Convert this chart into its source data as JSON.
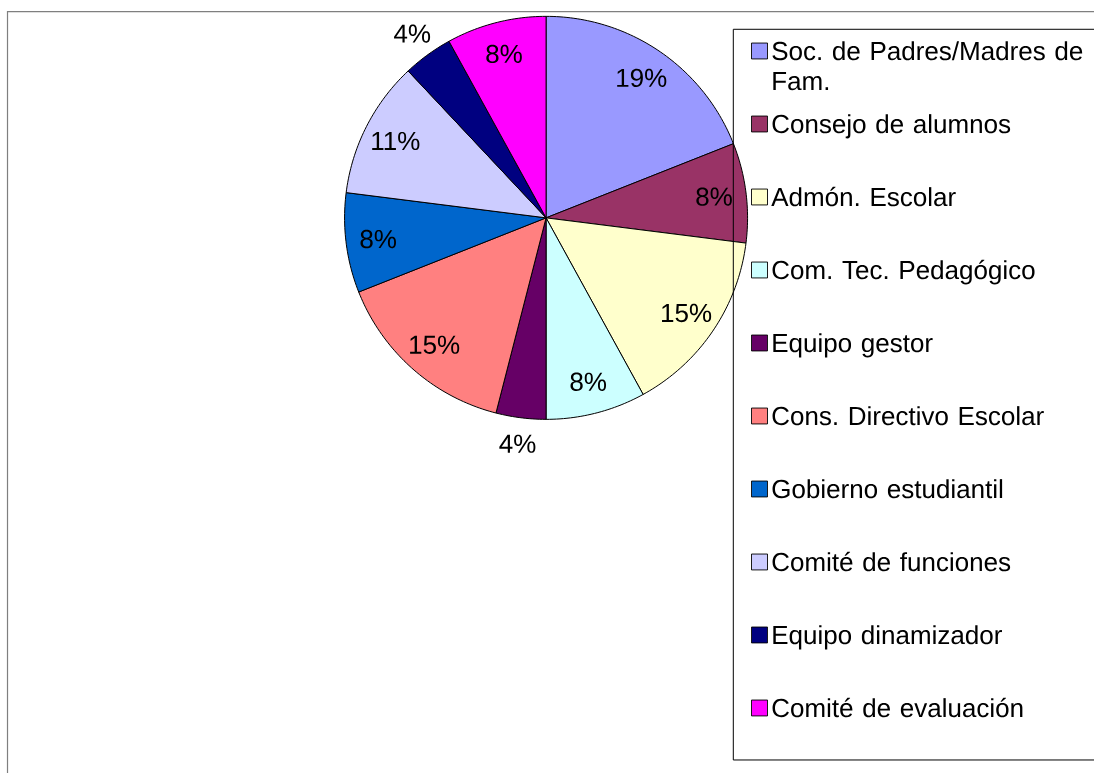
{
  "chart_data": {
    "type": "pie",
    "categories": [
      "Soc. de Padres/Madres de Fam.",
      "Consejo de alumnos",
      "Admón. Escolar",
      "Com. Tec. Pedagógico",
      "Equipo gestor",
      "Cons. Directivo Escolar",
      "Gobierno estudiantil",
      "Comité de funciones",
      "Equipo dinamizador",
      "Comité de evaluación"
    ],
    "values": [
      19,
      8,
      15,
      8,
      4,
      15,
      8,
      11,
      4,
      8
    ],
    "colors": [
      "#9999ff",
      "#993366",
      "#ffffcc",
      "#ccffff",
      "#660066",
      "#ff8080",
      "#0066cc",
      "#ccccff",
      "#000080",
      "#ff00ff"
    ],
    "value_labels": [
      "19%",
      "8%",
      "15%",
      "8%",
      "4%",
      "15%",
      "8%",
      "11%",
      "4%",
      "8%"
    ],
    "legend": "right"
  }
}
